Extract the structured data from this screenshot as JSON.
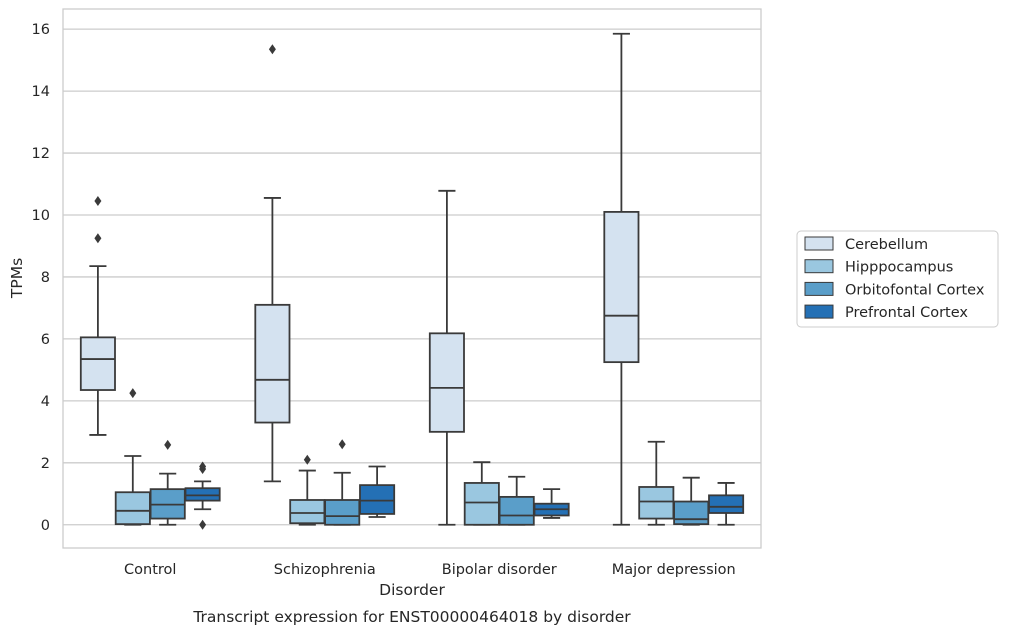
{
  "chart_data": {
    "type": "box",
    "caption": "Transcript expression for ENST00000464018 by disorder",
    "xlabel": "Disorder",
    "ylabel": "TPMs",
    "ylim": [
      -0.75,
      16.65
    ],
    "yticks": [
      0,
      2,
      4,
      6,
      8,
      10,
      12,
      14,
      16
    ],
    "grid": "horizontal",
    "legend_position": "right",
    "categories": [
      "Control",
      "Schizophrenia",
      "Bipolar disorder",
      "Major depression"
    ],
    "series": [
      {
        "name": "Cerebellum",
        "color": "#d4e2f0",
        "boxes": [
          {
            "whisker_low": 2.9,
            "q1": 4.35,
            "median": 5.35,
            "q3": 6.05,
            "whisker_high": 8.35,
            "outliers": [
              10.45,
              9.25
            ]
          },
          {
            "whisker_low": 1.4,
            "q1": 3.3,
            "median": 4.68,
            "q3": 7.1,
            "whisker_high": 10.55,
            "outliers": [
              15.35
            ]
          },
          {
            "whisker_low": 0.0,
            "q1": 3.0,
            "median": 4.42,
            "q3": 6.18,
            "whisker_high": 10.78,
            "outliers": []
          },
          {
            "whisker_low": 0.0,
            "q1": 5.25,
            "median": 6.75,
            "q3": 10.1,
            "whisker_high": 15.85,
            "outliers": []
          }
        ]
      },
      {
        "name": "Hipppocampus",
        "color": "#9ac7e0",
        "boxes": [
          {
            "whisker_low": 0.0,
            "q1": 0.02,
            "median": 0.45,
            "q3": 1.05,
            "whisker_high": 2.22,
            "outliers": [
              4.25
            ]
          },
          {
            "whisker_low": 0.0,
            "q1": 0.05,
            "median": 0.38,
            "q3": 0.8,
            "whisker_high": 1.75,
            "outliers": [
              2.1
            ]
          },
          {
            "whisker_low": 0.0,
            "q1": 0.0,
            "median": 0.72,
            "q3": 1.35,
            "whisker_high": 2.02,
            "outliers": []
          },
          {
            "whisker_low": 0.0,
            "q1": 0.2,
            "median": 0.75,
            "q3": 1.22,
            "whisker_high": 2.68,
            "outliers": []
          }
        ]
      },
      {
        "name": "Orbitofontal Cortex",
        "color": "#5a9ec9",
        "boxes": [
          {
            "whisker_low": 0.0,
            "q1": 0.2,
            "median": 0.65,
            "q3": 1.15,
            "whisker_high": 1.65,
            "outliers": [
              2.58
            ]
          },
          {
            "whisker_low": 0.0,
            "q1": 0.0,
            "median": 0.28,
            "q3": 0.8,
            "whisker_high": 1.68,
            "outliers": [
              2.6
            ]
          },
          {
            "whisker_low": 0.0,
            "q1": 0.0,
            "median": 0.3,
            "q3": 0.9,
            "whisker_high": 1.55,
            "outliers": []
          },
          {
            "whisker_low": 0.0,
            "q1": 0.02,
            "median": 0.18,
            "q3": 0.75,
            "whisker_high": 1.52,
            "outliers": []
          }
        ]
      },
      {
        "name": "Prefrontal Cortex",
        "color": "#2470b5",
        "boxes": [
          {
            "whisker_low": 0.5,
            "q1": 0.78,
            "median": 0.95,
            "q3": 1.18,
            "whisker_high": 1.4,
            "outliers": [
              1.88,
              1.8,
              0.0
            ]
          },
          {
            "whisker_low": 0.25,
            "q1": 0.35,
            "median": 0.78,
            "q3": 1.28,
            "whisker_high": 1.88,
            "outliers": []
          },
          {
            "whisker_low": 0.22,
            "q1": 0.3,
            "median": 0.5,
            "q3": 0.68,
            "whisker_high": 1.15,
            "outliers": []
          },
          {
            "whisker_low": 0.0,
            "q1": 0.38,
            "median": 0.58,
            "q3": 0.95,
            "whisker_high": 1.35,
            "outliers": []
          }
        ]
      }
    ]
  }
}
